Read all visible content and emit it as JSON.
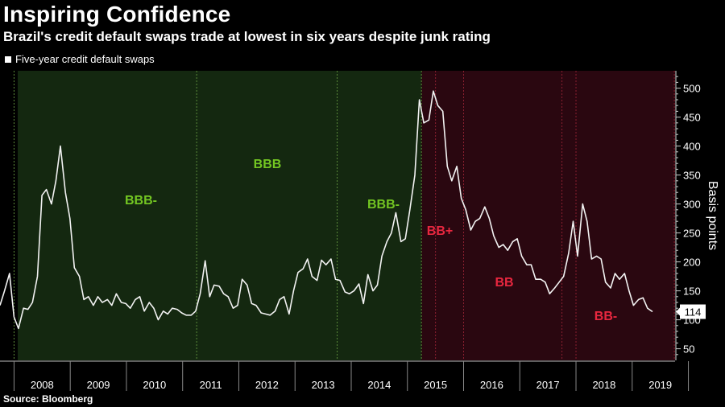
{
  "title": "Inspiring Confidence",
  "subtitle": "Brazil's credit default swaps trade at lowest in six years despite junk rating",
  "source": "Source: Bloomberg",
  "legend": {
    "label": "Five-year credit default swaps"
  },
  "colors": {
    "investment_grade_bg": "#142810",
    "junk_bg": "#2a0710",
    "green_label": "#73c622",
    "red_label": "#e8273f",
    "line": "#f2f2f2"
  },
  "chart_data": {
    "type": "line",
    "title": "Inspiring Confidence",
    "subtitle": "Brazil's credit default swaps trade at lowest in six years despite junk rating",
    "ylabel": "Basis points",
    "ylim": [
      30,
      530
    ],
    "y_ticks": [
      50,
      100,
      150,
      200,
      250,
      300,
      350,
      400,
      450,
      500
    ],
    "x_range": [
      2008.0,
      2019.9
    ],
    "x_tick_labels": [
      "2008",
      "2009",
      "2010",
      "2011",
      "2012",
      "2013",
      "2014",
      "2015",
      "2016",
      "2017",
      "2018",
      "2019"
    ],
    "last_value_label": "114",
    "series": [
      {
        "name": "Five-year credit default swaps",
        "x": [
          2008.0,
          2008.08,
          2008.17,
          2008.25,
          2008.33,
          2008.42,
          2008.5,
          2008.58,
          2008.67,
          2008.75,
          2008.83,
          2008.92,
          2009.0,
          2009.08,
          2009.17,
          2009.25,
          2009.33,
          2009.42,
          2009.5,
          2009.58,
          2009.67,
          2009.75,
          2009.83,
          2009.92,
          2010.0,
          2010.08,
          2010.17,
          2010.25,
          2010.33,
          2010.42,
          2010.5,
          2010.58,
          2010.67,
          2010.75,
          2010.83,
          2010.92,
          2011.0,
          2011.08,
          2011.17,
          2011.25,
          2011.33,
          2011.42,
          2011.5,
          2011.58,
          2011.67,
          2011.75,
          2011.83,
          2011.92,
          2012.0,
          2012.08,
          2012.17,
          2012.25,
          2012.33,
          2012.42,
          2012.5,
          2012.58,
          2012.67,
          2012.75,
          2012.83,
          2012.92,
          2013.0,
          2013.08,
          2013.17,
          2013.25,
          2013.33,
          2013.42,
          2013.5,
          2013.58,
          2013.67,
          2013.75,
          2013.83,
          2013.92,
          2014.0,
          2014.08,
          2014.17,
          2014.25,
          2014.33,
          2014.42,
          2014.5,
          2014.58,
          2014.67,
          2014.75,
          2014.83,
          2014.92,
          2015.0,
          2015.08,
          2015.17,
          2015.25,
          2015.33,
          2015.42,
          2015.5,
          2015.58,
          2015.67,
          2015.75,
          2015.83,
          2015.92,
          2016.0,
          2016.08,
          2016.17,
          2016.25,
          2016.33,
          2016.42,
          2016.5,
          2016.58,
          2016.67,
          2016.75,
          2016.83,
          2016.92,
          2017.0,
          2017.08,
          2017.17,
          2017.25,
          2017.33,
          2017.42,
          2017.5,
          2017.58,
          2017.67,
          2017.75,
          2017.83,
          2017.92,
          2018.0,
          2018.08,
          2018.17,
          2018.25,
          2018.33,
          2018.42,
          2018.5,
          2018.58,
          2018.67,
          2018.75,
          2018.83,
          2018.92,
          2019.0,
          2019.08,
          2019.17,
          2019.25,
          2019.33,
          2019.42,
          2019.5,
          2019.58,
          2019.67
        ],
        "values": [
          125,
          150,
          180,
          105,
          85,
          120,
          118,
          130,
          175,
          315,
          325,
          300,
          340,
          400,
          320,
          275,
          190,
          175,
          135,
          140,
          125,
          140,
          130,
          135,
          125,
          145,
          130,
          128,
          120,
          135,
          140,
          115,
          130,
          120,
          100,
          115,
          110,
          120,
          118,
          112,
          108,
          108,
          115,
          145,
          202,
          140,
          160,
          158,
          145,
          140,
          120,
          125,
          170,
          160,
          128,
          125,
          112,
          110,
          108,
          115,
          135,
          140,
          110,
          150,
          182,
          188,
          205,
          175,
          168,
          203,
          195,
          205,
          170,
          168,
          148,
          145,
          150,
          162,
          128,
          178,
          150,
          160,
          210,
          235,
          250,
          285,
          235,
          240,
          290,
          350,
          480,
          440,
          445,
          495,
          470,
          460,
          365,
          340,
          365,
          310,
          290,
          255,
          270,
          275,
          295,
          275,
          245,
          225,
          230,
          220,
          235,
          240,
          210,
          195,
          195,
          170,
          170,
          165,
          145,
          155,
          165,
          175,
          215,
          270,
          210,
          300,
          270,
          205,
          210,
          205,
          165,
          155,
          180,
          170,
          180,
          150,
          125,
          135,
          138,
          120,
          114
        ]
      }
    ],
    "rating_periods": [
      {
        "label": "BBB-",
        "grade": "investment"
      },
      {
        "label": "BBB",
        "grade": "investment"
      },
      {
        "label": "BBB-",
        "grade": "investment"
      },
      {
        "label": "BB+",
        "grade": "junk"
      },
      {
        "label": "BB",
        "grade": "junk"
      },
      {
        "label": "BB-",
        "grade": "junk"
      }
    ]
  }
}
